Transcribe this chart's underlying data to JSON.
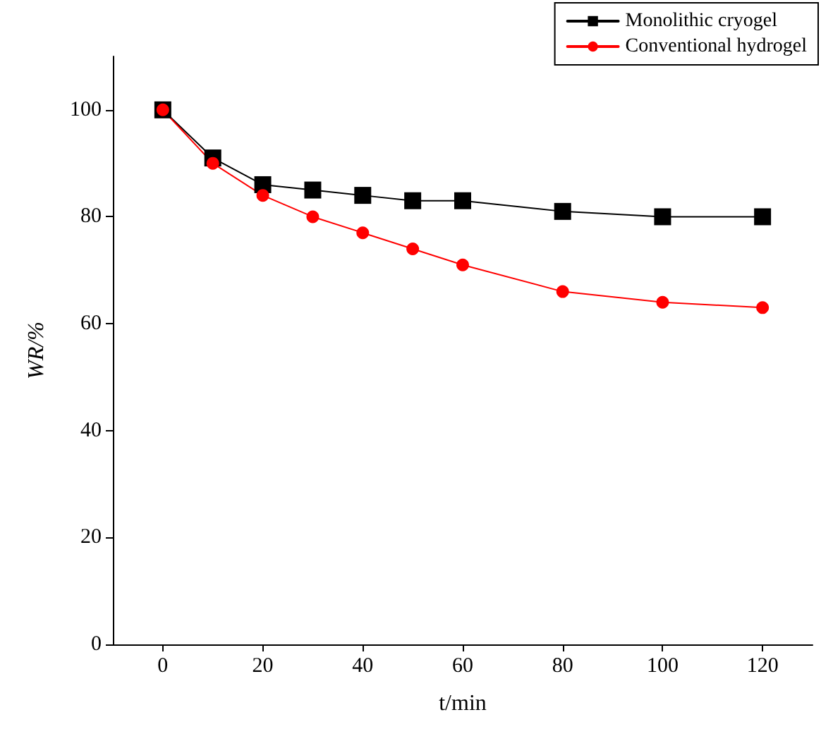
{
  "chart_data": {
    "type": "line",
    "xlabel": "t/min",
    "ylabel": "WR/%",
    "x": [
      0,
      10,
      20,
      30,
      40,
      50,
      60,
      80,
      100,
      120
    ],
    "series": [
      {
        "name": "Monolithic cryogel",
        "color": "#000000",
        "marker": "square",
        "values": [
          100,
          91,
          86,
          85,
          84,
          83,
          83,
          81,
          80,
          80
        ]
      },
      {
        "name": "Conventional hydrogel",
        "color": "#ff0000",
        "marker": "circle",
        "values": [
          100,
          90,
          84,
          80,
          77,
          74,
          71,
          66,
          64,
          63
        ]
      }
    ],
    "xlim": [
      -10,
      130
    ],
    "xticks": [
      0,
      20,
      40,
      60,
      80,
      100,
      120
    ],
    "ylim": [
      0,
      110
    ],
    "yticks": [
      0,
      20,
      40,
      60,
      80,
      100
    ],
    "grid": false,
    "legend": "top right",
    "line_style": "solid"
  }
}
